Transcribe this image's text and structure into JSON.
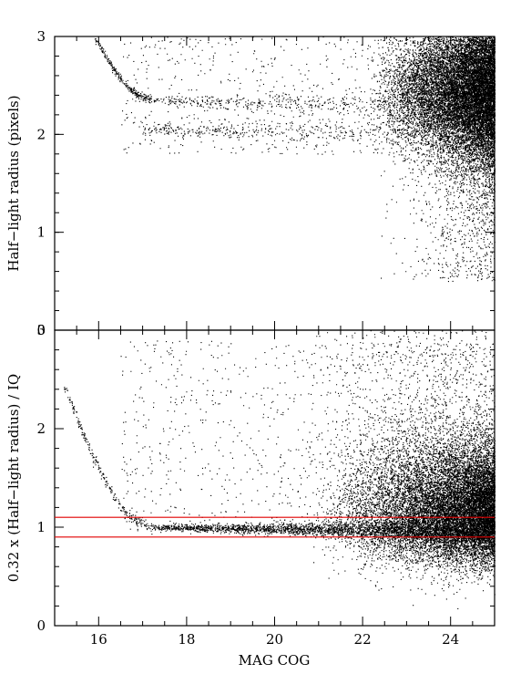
{
  "chart_data": [
    {
      "type": "scatter",
      "ylabel": "Half−light radius (pixels)",
      "xlim": [
        15,
        25
      ],
      "ylim": [
        0,
        3
      ],
      "yticks": [
        0,
        1,
        2,
        3
      ],
      "xticks": [
        16,
        18,
        20,
        22,
        24
      ],
      "show_xtick_labels": false,
      "point_color": "#000000",
      "features": [
        {
          "name": "stellar locus curve",
          "x": [
            15.9,
            16.1,
            16.3,
            16.5,
            16.7,
            16.9,
            17.2
          ],
          "y": [
            3.0,
            2.85,
            2.7,
            2.57,
            2.47,
            2.4,
            2.36
          ]
        },
        {
          "name": "upper horizontal branch",
          "x": [
            17.2,
            19,
            21,
            22.5,
            23.5
          ],
          "y": [
            2.35,
            2.33,
            2.32,
            2.3,
            2.28
          ]
        },
        {
          "name": "lower horizontal branch",
          "x": [
            17.0,
            19,
            21,
            22.5,
            23.5
          ],
          "y": [
            2.05,
            2.04,
            2.03,
            2.03,
            2.02
          ]
        },
        {
          "name": "faint galaxy cloud",
          "x_range": [
            22,
            25
          ],
          "y_range": [
            0.5,
            3
          ],
          "density": "very high near x=24-25"
        }
      ]
    },
    {
      "type": "scatter",
      "ylabel": "0.32 x (Half−light radius) / IQ",
      "xlabel": "MAG COG",
      "xlim": [
        15,
        25
      ],
      "ylim": [
        0,
        3
      ],
      "yticks": [
        0,
        1,
        2,
        3
      ],
      "xticks": [
        16,
        18,
        20,
        22,
        24
      ],
      "reference_lines": [
        {
          "y": 1.1,
          "color": "#e00000"
        },
        {
          "y": 0.9,
          "color": "#e00000"
        }
      ],
      "point_color": "#000000",
      "features": [
        {
          "name": "stellar locus curve",
          "x": [
            15.2,
            15.6,
            16.0,
            16.3,
            16.6,
            16.9,
            17.2
          ],
          "y": [
            2.45,
            2.0,
            1.6,
            1.35,
            1.15,
            1.05,
            1.01
          ]
        },
        {
          "name": "stellar sequence",
          "x": [
            17.2,
            19,
            21,
            22.5,
            24,
            25
          ],
          "y": [
            1.0,
            0.99,
            0.98,
            0.97,
            0.95,
            0.93
          ]
        },
        {
          "name": "faint galaxy cloud",
          "x_range": [
            20.5,
            25
          ],
          "y_range": [
            0.3,
            3
          ],
          "density": "very high near x=24-25, y=1-1.5"
        }
      ]
    }
  ]
}
